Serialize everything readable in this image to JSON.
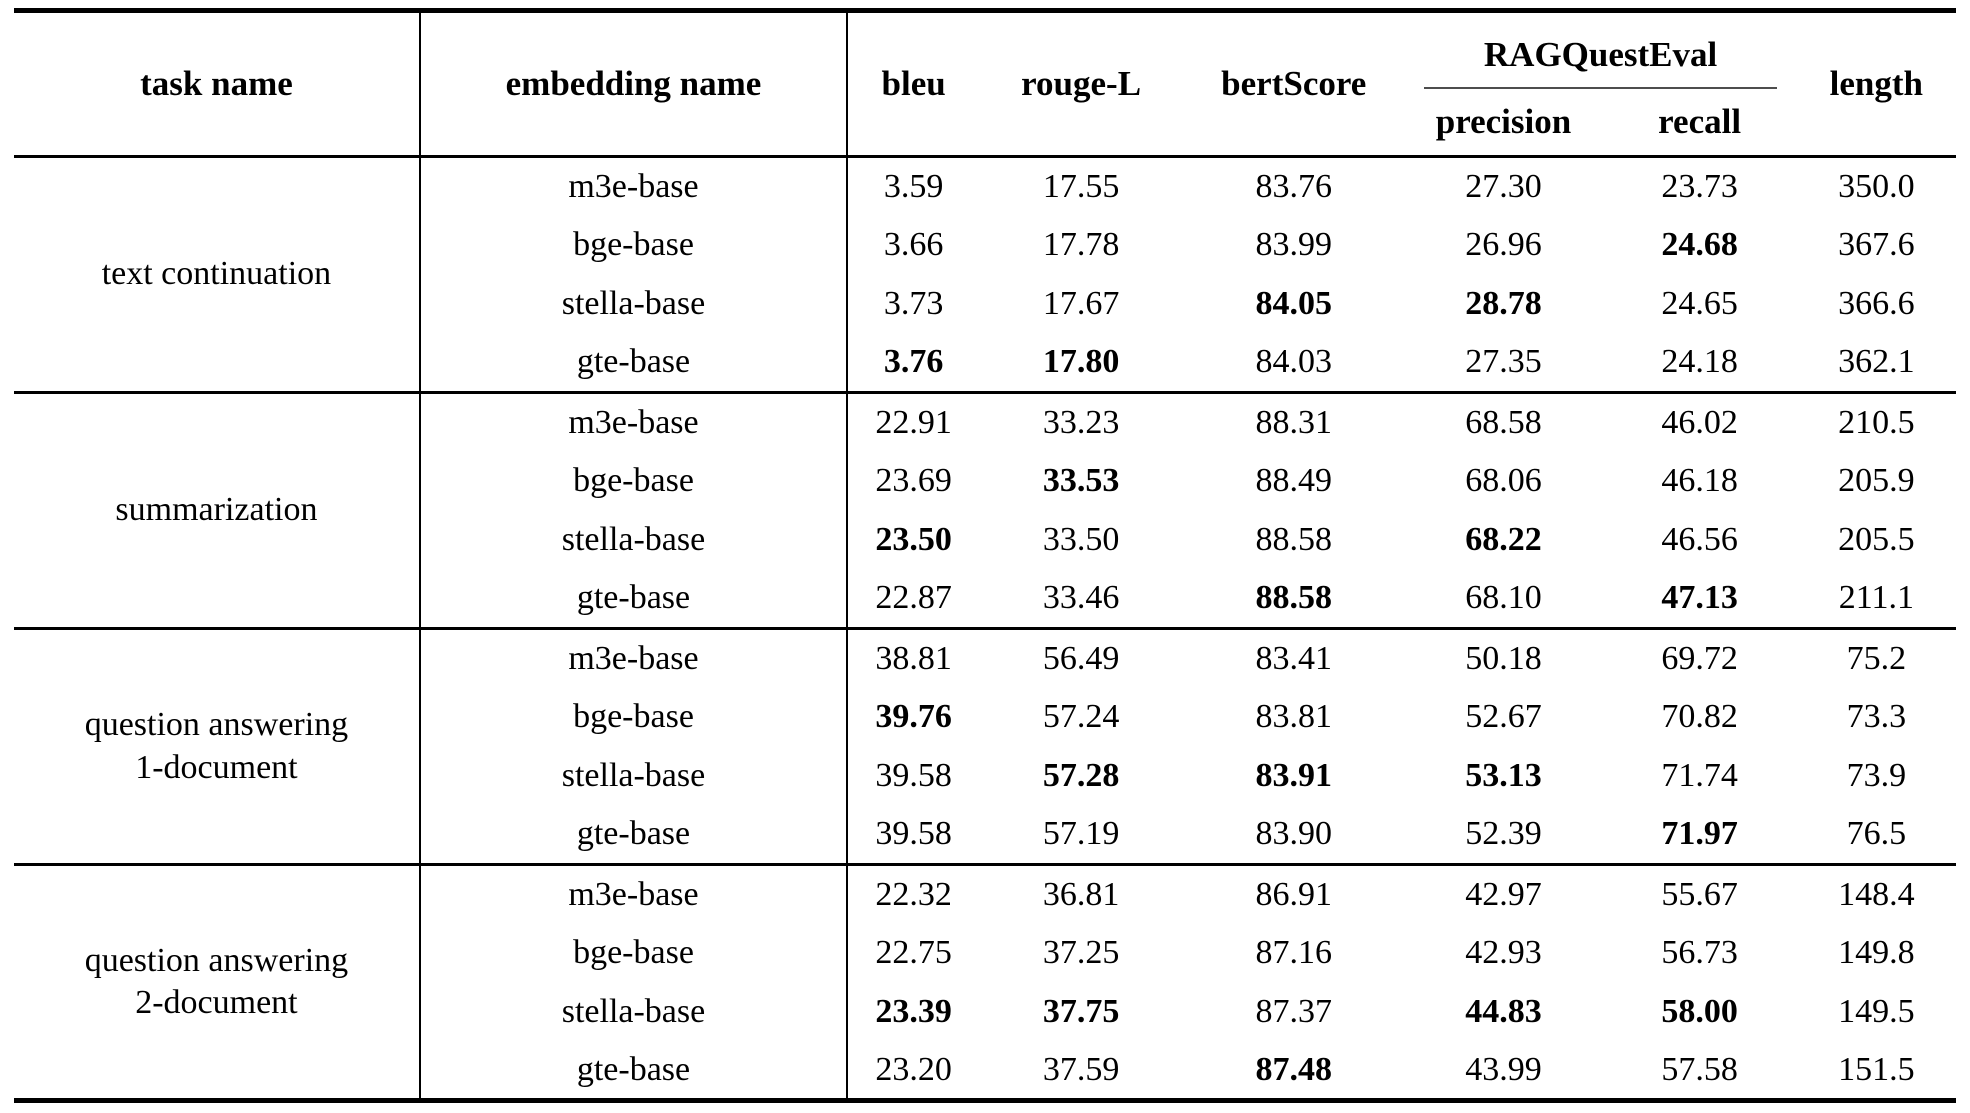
{
  "page": {
    "background": "#ffffff",
    "text_color": "#000000",
    "rule_color": "#000000",
    "cmidrule_color": "#4d4d4d"
  },
  "table": {
    "header": {
      "task": "task name",
      "embedding": "embedding name",
      "bleu": "bleu",
      "rouge_l": "rouge-L",
      "bert_score": "bertScore",
      "rag_quest_eval": "RAGQuestEval",
      "precision": "precision",
      "recall": "recall",
      "length": "length"
    },
    "metric_keys": [
      "bleu",
      "rouge-l",
      "bertscore",
      "precision",
      "recall",
      "length"
    ],
    "groups": [
      {
        "task": "text continuation",
        "rows": [
          {
            "embedding": "m3e-base",
            "values": [
              "3.59",
              "17.55",
              "83.76",
              "27.30",
              "23.73",
              "350.0"
            ],
            "bold": [
              false,
              false,
              false,
              false,
              false,
              false
            ]
          },
          {
            "embedding": "bge-base",
            "values": [
              "3.66",
              "17.78",
              "83.99",
              "26.96",
              "24.68",
              "367.6"
            ],
            "bold": [
              false,
              false,
              false,
              false,
              true,
              false
            ]
          },
          {
            "embedding": "stella-base",
            "values": [
              "3.73",
              "17.67",
              "84.05",
              "28.78",
              "24.65",
              "366.6"
            ],
            "bold": [
              false,
              false,
              true,
              true,
              false,
              false
            ]
          },
          {
            "embedding": "gte-base",
            "values": [
              "3.76",
              "17.80",
              "84.03",
              "27.35",
              "24.18",
              "362.1"
            ],
            "bold": [
              true,
              true,
              false,
              false,
              false,
              false
            ]
          }
        ]
      },
      {
        "task": "summarization",
        "rows": [
          {
            "embedding": "m3e-base",
            "values": [
              "22.91",
              "33.23",
              "88.31",
              "68.58",
              "46.02",
              "210.5"
            ],
            "bold": [
              false,
              false,
              false,
              false,
              false,
              false
            ]
          },
          {
            "embedding": "bge-base",
            "values": [
              "23.69",
              "33.53",
              "88.49",
              "68.06",
              "46.18",
              "205.9"
            ],
            "bold": [
              false,
              true,
              false,
              false,
              false,
              false
            ]
          },
          {
            "embedding": "stella-base",
            "values": [
              "23.50",
              "33.50",
              "88.58",
              "68.22",
              "46.56",
              "205.5"
            ],
            "bold": [
              true,
              false,
              false,
              true,
              false,
              false
            ]
          },
          {
            "embedding": "gte-base",
            "values": [
              "22.87",
              "33.46",
              "88.58",
              "68.10",
              "47.13",
              "211.1"
            ],
            "bold": [
              false,
              false,
              true,
              false,
              true,
              false
            ]
          }
        ]
      },
      {
        "task": "question answering\n1-document",
        "rows": [
          {
            "embedding": "m3e-base",
            "values": [
              "38.81",
              "56.49",
              "83.41",
              "50.18",
              "69.72",
              "75.2"
            ],
            "bold": [
              false,
              false,
              false,
              false,
              false,
              false
            ]
          },
          {
            "embedding": "bge-base",
            "values": [
              "39.76",
              "57.24",
              "83.81",
              "52.67",
              "70.82",
              "73.3"
            ],
            "bold": [
              true,
              false,
              false,
              false,
              false,
              false
            ]
          },
          {
            "embedding": "stella-base",
            "values": [
              "39.58",
              "57.28",
              "83.91",
              "53.13",
              "71.74",
              "73.9"
            ],
            "bold": [
              false,
              true,
              true,
              true,
              false,
              false
            ]
          },
          {
            "embedding": "gte-base",
            "values": [
              "39.58",
              "57.19",
              "83.90",
              "52.39",
              "71.97",
              "76.5"
            ],
            "bold": [
              false,
              false,
              false,
              false,
              true,
              false
            ]
          }
        ]
      },
      {
        "task": "question answering\n2-document",
        "rows": [
          {
            "embedding": "m3e-base",
            "values": [
              "22.32",
              "36.81",
              "86.91",
              "42.97",
              "55.67",
              "148.4"
            ],
            "bold": [
              false,
              false,
              false,
              false,
              false,
              false
            ]
          },
          {
            "embedding": "bge-base",
            "values": [
              "22.75",
              "37.25",
              "87.16",
              "42.93",
              "56.73",
              "149.8"
            ],
            "bold": [
              false,
              false,
              false,
              false,
              false,
              false
            ]
          },
          {
            "embedding": "stella-base",
            "values": [
              "23.39",
              "37.75",
              "87.37",
              "44.83",
              "58.00",
              "149.5"
            ],
            "bold": [
              true,
              true,
              false,
              true,
              true,
              false
            ]
          },
          {
            "embedding": "gte-base",
            "values": [
              "23.20",
              "37.59",
              "87.48",
              "43.99",
              "57.58",
              "151.5"
            ],
            "bold": [
              false,
              false,
              true,
              false,
              false,
              false
            ]
          }
        ]
      }
    ]
  }
}
